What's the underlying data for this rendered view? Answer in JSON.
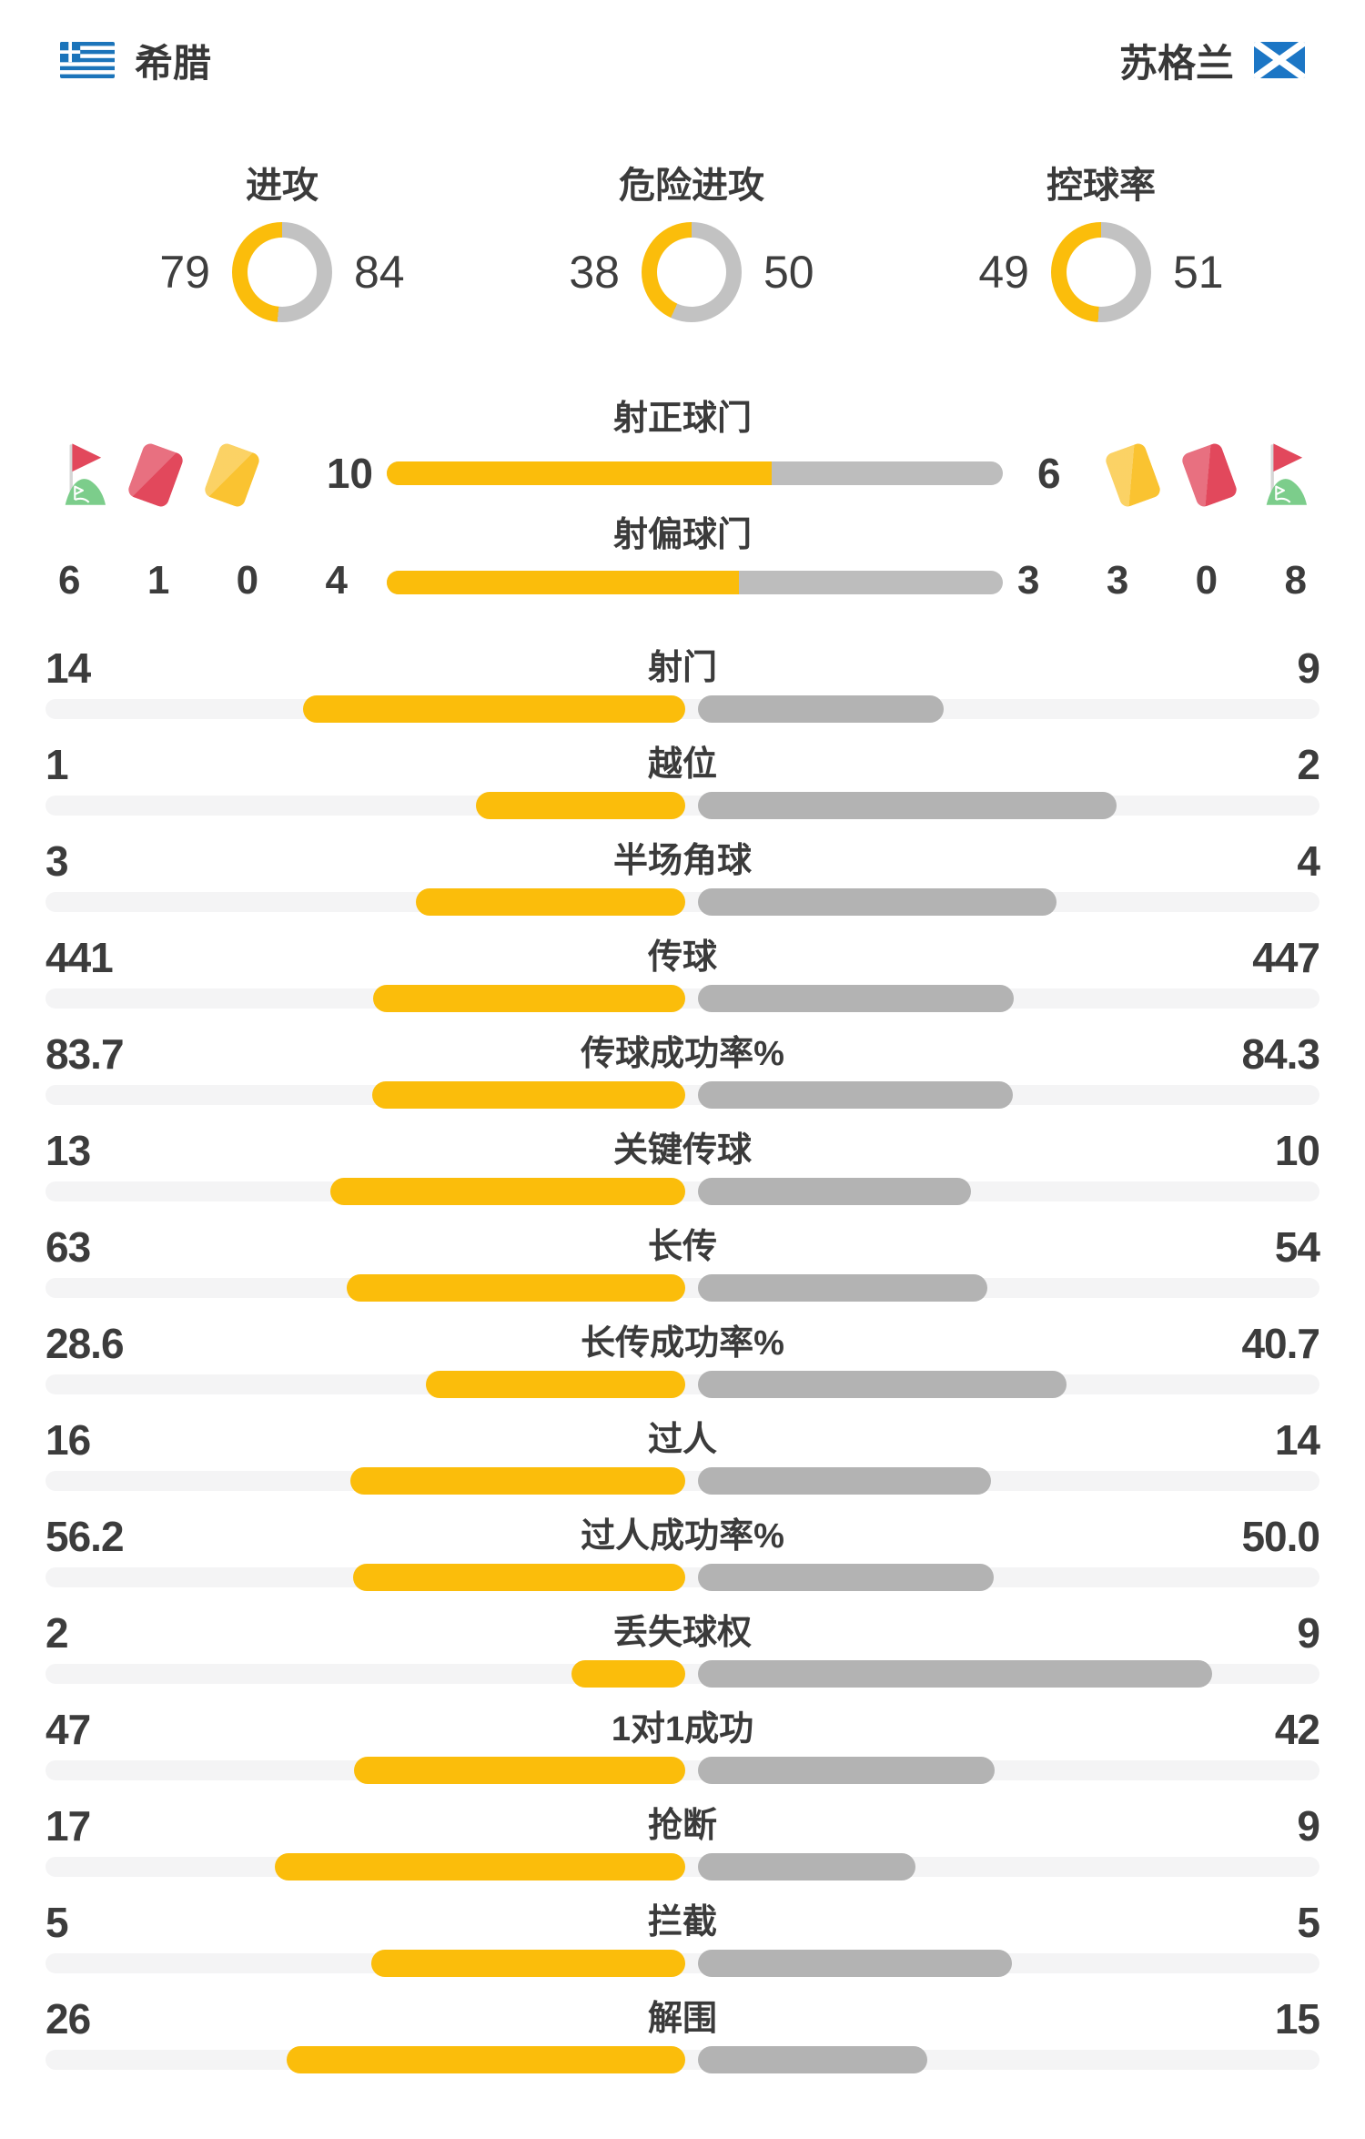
{
  "header": {
    "home": {
      "name": "希腊",
      "flag": "greece-flag"
    },
    "away": {
      "name": "苏格兰",
      "flag": "scotland-flag"
    }
  },
  "donuts": [
    {
      "title": "进攻",
      "home": 79,
      "away": 84
    },
    {
      "title": "危险进攻",
      "home": 38,
      "away": 50
    },
    {
      "title": "控球率",
      "home": 49,
      "away": 51
    }
  ],
  "cards_corners": {
    "home": [
      {
        "icon": "corner-flag",
        "value": "6"
      },
      {
        "icon": "red-card",
        "value": "1"
      },
      {
        "icon": "yellow-card",
        "value": "0"
      }
    ],
    "away": [
      {
        "icon": "yellow-card",
        "value": "3"
      },
      {
        "icon": "red-card",
        "value": "0"
      },
      {
        "icon": "corner-flag",
        "value": "8"
      }
    ]
  },
  "shots": [
    {
      "label": "射正球门",
      "home": "10",
      "away": "6"
    },
    {
      "label": "射偏球门",
      "home": "4",
      "away": "3"
    }
  ],
  "stats": [
    {
      "label": "射门",
      "home": "14",
      "away": "9"
    },
    {
      "label": "越位",
      "home": "1",
      "away": "2"
    },
    {
      "label": "半场角球",
      "home": "3",
      "away": "4"
    },
    {
      "label": "传球",
      "home": "441",
      "away": "447"
    },
    {
      "label": "传球成功率%",
      "home": "83.7",
      "away": "84.3"
    },
    {
      "label": "关键传球",
      "home": "13",
      "away": "10"
    },
    {
      "label": "长传",
      "home": "63",
      "away": "54"
    },
    {
      "label": "长传成功率%",
      "home": "28.6",
      "away": "40.7"
    },
    {
      "label": "过人",
      "home": "16",
      "away": "14"
    },
    {
      "label": "过人成功率%",
      "home": "56.2",
      "away": "50.0"
    },
    {
      "label": "丢失球权",
      "home": "2",
      "away": "9"
    },
    {
      "label": "1对1成功",
      "home": "47",
      "away": "42"
    },
    {
      "label": "抢断",
      "home": "17",
      "away": "9"
    },
    {
      "label": "拦截",
      "home": "5",
      "away": "5"
    },
    {
      "label": "解围",
      "home": "26",
      "away": "15"
    }
  ],
  "colors": {
    "accent_yellow": "#fbbd0b",
    "bar_gray": "#b3b3b3",
    "shotbar_gray": "#bdbdbd",
    "donut_gray": "#c2c2c2",
    "track_gray": "#f4f4f5",
    "text_dark": "#3c3c3c",
    "card_red": "#e2485c",
    "card_yellow": "#fac331",
    "flag_green": "#7ccd8b",
    "greece_blue": "#1b74ba",
    "scotland_blue": "#1c76c5"
  }
}
